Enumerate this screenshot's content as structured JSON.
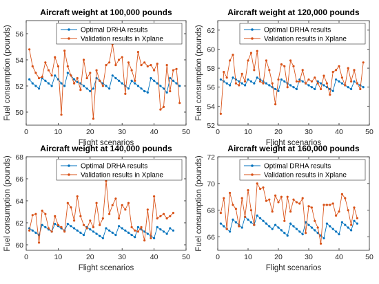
{
  "chart_data": [
    {
      "type": "line",
      "title": "Aircraft weight at 100,000 pounds",
      "xlabel": "Flight scenarios",
      "ylabel": "Fuel consumption (pounds)",
      "xlim": [
        0,
        50
      ],
      "ylim": [
        49,
        57
      ],
      "xticks": [
        0,
        10,
        20,
        30,
        40,
        50
      ],
      "yticks": [
        50,
        52,
        54,
        56
      ],
      "legend": "top-right",
      "series": [
        {
          "name": "Optimal DRHA results",
          "color": "#0072BD",
          "marker": "dot",
          "x": [
            1,
            2,
            3,
            4,
            5,
            6,
            7,
            8,
            9,
            10,
            11,
            12,
            13,
            14,
            15,
            16,
            17,
            18,
            19,
            20,
            21,
            22,
            23,
            24,
            25,
            26,
            27,
            28,
            29,
            30,
            31,
            32,
            33,
            34,
            35,
            36,
            37,
            38,
            39,
            40,
            41,
            42,
            43,
            44,
            45,
            46,
            47,
            48
          ],
          "y": [
            52.5,
            52.2,
            52.0,
            51.8,
            52.6,
            52.4,
            52.2,
            52.0,
            52.8,
            52.5,
            52.2,
            52.0,
            53.0,
            52.8,
            52.5,
            52.3,
            52.2,
            52.0,
            51.8,
            51.6,
            51.8,
            52.6,
            52.4,
            52.2,
            52.0,
            51.8,
            52.8,
            52.6,
            52.4,
            52.2,
            52.0,
            51.8,
            52.4,
            52.2,
            52.0,
            51.8,
            51.6,
            51.5,
            52.6,
            52.4,
            52.2,
            52.0,
            51.8,
            51.5,
            52.6,
            52.4,
            52.2,
            52.0
          ]
        },
        {
          "name": "Validation results in Xplane",
          "color": "#D95319",
          "marker": "dot",
          "x": [
            1,
            2,
            3,
            4,
            5,
            6,
            7,
            8,
            9,
            10,
            11,
            12,
            13,
            14,
            15,
            16,
            17,
            18,
            19,
            20,
            21,
            22,
            23,
            24,
            25,
            26,
            27,
            28,
            29,
            30,
            31,
            32,
            33,
            34,
            35,
            36,
            37,
            38,
            39,
            40,
            41,
            42,
            43,
            44,
            45,
            46,
            47,
            48
          ],
          "y": [
            54.8,
            53.5,
            53.0,
            52.6,
            52.7,
            53.8,
            53.2,
            52.8,
            54.2,
            53.5,
            49.8,
            54.7,
            53.5,
            52.8,
            52.2,
            52.6,
            51.7,
            54.0,
            52.6,
            53.0,
            49.5,
            53.2,
            52.4,
            52.0,
            53.6,
            53.8,
            55.2,
            53.6,
            54.0,
            54.2,
            51.4,
            53.8,
            53.2,
            52.4,
            54.6,
            53.6,
            53.8,
            53.5,
            53.6,
            53.2,
            53.7,
            50.2,
            50.4,
            53.6,
            51.6,
            53.2,
            53.3,
            50.7
          ]
        }
      ]
    },
    {
      "type": "line",
      "title": "Aircraft weight at 120,000 pounds",
      "xlabel": "Flight scenarios",
      "ylabel": "Fuel consumption (pounds)",
      "xlim": [
        0,
        50
      ],
      "ylim": [
        52,
        63
      ],
      "xticks": [
        0,
        10,
        20,
        30,
        40,
        50
      ],
      "yticks": [
        52,
        54,
        56,
        58,
        60,
        62
      ],
      "legend": "top-right",
      "series": [
        {
          "name": "Optimal DRHA results",
          "color": "#0072BD",
          "marker": "dot",
          "x": [
            1,
            2,
            3,
            4,
            5,
            6,
            7,
            8,
            9,
            10,
            11,
            12,
            13,
            14,
            15,
            16,
            17,
            18,
            19,
            20,
            21,
            22,
            23,
            24,
            25,
            26,
            27,
            28,
            29,
            30,
            31,
            32,
            33,
            34,
            35,
            36,
            37,
            38,
            39,
            40,
            41,
            42,
            43,
            44,
            45,
            46,
            47,
            48
          ],
          "y": [
            56.8,
            56.6,
            56.4,
            56.2,
            57.0,
            56.8,
            56.6,
            56.4,
            56.2,
            56.8,
            56.6,
            56.4,
            57.0,
            56.8,
            56.6,
            56.4,
            56.2,
            56.0,
            55.8,
            55.6,
            56.8,
            56.6,
            56.4,
            56.2,
            56.0,
            55.8,
            56.8,
            56.6,
            56.4,
            56.2,
            56.0,
            55.8,
            56.6,
            56.4,
            56.2,
            56.0,
            55.8,
            55.6,
            56.8,
            56.6,
            56.4,
            56.2,
            56.0,
            55.8,
            56.6,
            56.4,
            56.2,
            56.0
          ]
        },
        {
          "name": "Validation results in Xplane",
          "color": "#D95319",
          "marker": "dot",
          "x": [
            1,
            2,
            3,
            4,
            5,
            6,
            7,
            8,
            9,
            10,
            11,
            12,
            13,
            14,
            15,
            16,
            17,
            18,
            19,
            20,
            21,
            22,
            23,
            24,
            25,
            26,
            27,
            28,
            29,
            30,
            31,
            32,
            33,
            34,
            35,
            36,
            37,
            38,
            39,
            40,
            41,
            42,
            43,
            44,
            45,
            46,
            47,
            48
          ],
          "y": [
            53.2,
            57.6,
            57.0,
            58.8,
            59.4,
            56.4,
            56.2,
            57.4,
            56.6,
            58.8,
            59.6,
            57.8,
            59.8,
            56.6,
            56.4,
            58.8,
            57.8,
            56.4,
            54.2,
            56.8,
            58.4,
            58.2,
            56.0,
            58.8,
            58.2,
            56.6,
            56.6,
            57.8,
            56.4,
            56.8,
            56.6,
            57.0,
            56.4,
            55.8,
            57.2,
            56.4,
            55.2,
            57.6,
            57.8,
            58.2,
            57.0,
            56.2,
            58.0,
            56.6,
            57.8,
            56.4,
            55.8,
            58.6
          ]
        }
      ]
    },
    {
      "type": "line",
      "title": "Aircraft weight at 140,000 pounds",
      "xlabel": "Flight scenarios",
      "ylabel": "Fuel consumption (pounds)",
      "xlim": [
        0,
        50
      ],
      "ylim": [
        59.5,
        68
      ],
      "xticks": [
        0,
        10,
        20,
        30,
        40,
        50
      ],
      "yticks": [
        60,
        62,
        64,
        66,
        68
      ],
      "legend": "top-right",
      "series": [
        {
          "name": "Optimal DRHA results",
          "color": "#0072BD",
          "marker": "dot",
          "x": [
            1,
            2,
            3,
            4,
            5,
            6,
            7,
            8,
            9,
            10,
            11,
            12,
            13,
            14,
            15,
            16,
            17,
            18,
            19,
            20,
            21,
            22,
            23,
            24,
            25,
            26,
            27,
            28,
            29,
            30,
            31,
            32,
            33,
            34,
            35,
            36,
            37,
            38,
            39,
            40,
            41,
            42,
            43,
            44,
            45,
            46
          ],
          "y": [
            61.5,
            61.3,
            61.1,
            60.9,
            61.8,
            61.6,
            61.4,
            61.2,
            61.9,
            61.7,
            61.5,
            61.3,
            61.9,
            61.7,
            61.5,
            61.3,
            61.1,
            60.9,
            61.6,
            61.4,
            61.2,
            61.0,
            60.8,
            60.6,
            61.5,
            61.3,
            61.1,
            60.9,
            61.7,
            61.5,
            61.3,
            61.1,
            60.9,
            60.7,
            61.6,
            61.4,
            61.2,
            61.0,
            60.8,
            60.6,
            61.6,
            61.4,
            61.2,
            61.0,
            61.5,
            61.3
          ]
        },
        {
          "name": "Validation results in Xplane",
          "color": "#D95319",
          "marker": "dot",
          "x": [
            1,
            2,
            3,
            4,
            5,
            6,
            7,
            8,
            9,
            10,
            11,
            12,
            13,
            14,
            15,
            16,
            17,
            18,
            19,
            20,
            21,
            22,
            23,
            24,
            25,
            26,
            27,
            28,
            29,
            30,
            31,
            32,
            33,
            34,
            35,
            36,
            37,
            38,
            39,
            40,
            41,
            42,
            43,
            44,
            45,
            46
          ],
          "y": [
            61.3,
            62.7,
            62.8,
            60.2,
            63.1,
            62.8,
            61.5,
            61.2,
            62.6,
            61.8,
            61.6,
            61.2,
            63.8,
            63.4,
            62.2,
            64.4,
            62.6,
            61.8,
            61.5,
            62.2,
            61.6,
            63.8,
            61.8,
            62.4,
            65.8,
            62.8,
            63.6,
            64.2,
            62.4,
            63.6,
            63.2,
            63.8,
            61.6,
            61.3,
            61.2,
            61.6,
            60.4,
            63.2,
            60.6,
            64.4,
            62.4,
            62.6,
            62.8,
            62.4,
            62.6,
            62.9
          ]
        }
      ]
    },
    {
      "type": "line",
      "title": "Aircraft weight at 160,000 pounds",
      "xlabel": "Flight scenarios",
      "ylabel": "Fuel consumption (pounds)",
      "xlim": [
        0,
        50
      ],
      "ylim": [
        65,
        72
      ],
      "xticks": [
        0,
        10,
        20,
        30,
        40,
        50
      ],
      "yticks": [
        66,
        68,
        70,
        72
      ],
      "legend": "top-right",
      "series": [
        {
          "name": "Optimal DRHA results",
          "color": "#0072BD",
          "marker": "dot",
          "x": [
            1,
            2,
            3,
            4,
            5,
            6,
            7,
            8,
            9,
            10,
            11,
            12,
            13,
            14,
            15,
            16,
            17,
            18,
            19,
            20,
            21,
            22,
            23,
            24,
            25,
            26,
            27,
            28,
            29,
            30,
            31,
            32,
            33,
            34,
            35,
            36,
            37,
            38,
            39,
            40,
            41,
            42,
            43,
            44,
            45,
            46
          ],
          "y": [
            67.0,
            66.8,
            66.6,
            66.4,
            67.3,
            67.1,
            66.9,
            66.7,
            67.5,
            67.3,
            67.1,
            66.9,
            67.6,
            67.4,
            67.2,
            67.0,
            66.8,
            66.6,
            66.9,
            66.7,
            66.5,
            66.3,
            66.1,
            67.0,
            66.8,
            66.6,
            66.4,
            66.2,
            67.1,
            66.9,
            66.7,
            66.5,
            66.3,
            66.1,
            65.9,
            67.0,
            66.8,
            66.6,
            66.4,
            66.2,
            67.1,
            66.9,
            66.7,
            66.5,
            67.2,
            67.0
          ]
        },
        {
          "name": "Validation results in Xplane",
          "color": "#D95319",
          "marker": "dot",
          "x": [
            1,
            2,
            3,
            4,
            5,
            6,
            7,
            8,
            9,
            10,
            11,
            12,
            13,
            14,
            15,
            16,
            17,
            18,
            19,
            20,
            21,
            22,
            23,
            24,
            25,
            26,
            27,
            28,
            29,
            30,
            31,
            32,
            33,
            34,
            35,
            36,
            37,
            38,
            39,
            40,
            41,
            42,
            43,
            44,
            45,
            46
          ],
          "y": [
            67.8,
            68.9,
            66.6,
            69.3,
            68.4,
            68.1,
            66.8,
            68.9,
            67.5,
            69.5,
            68.0,
            66.9,
            70.0,
            69.6,
            69.7,
            68.7,
            68.8,
            67.9,
            69.1,
            68.6,
            69.0,
            67.2,
            69.0,
            67.9,
            68.8,
            68.6,
            68.5,
            68.9,
            66.3,
            68.3,
            68.2,
            67.2,
            66.7,
            65.5,
            68.4,
            68.4,
            68.4,
            68.5,
            67.6,
            67.9,
            69.2,
            68.9,
            68.0,
            66.9,
            68.2,
            67.4
          ]
        }
      ]
    }
  ]
}
